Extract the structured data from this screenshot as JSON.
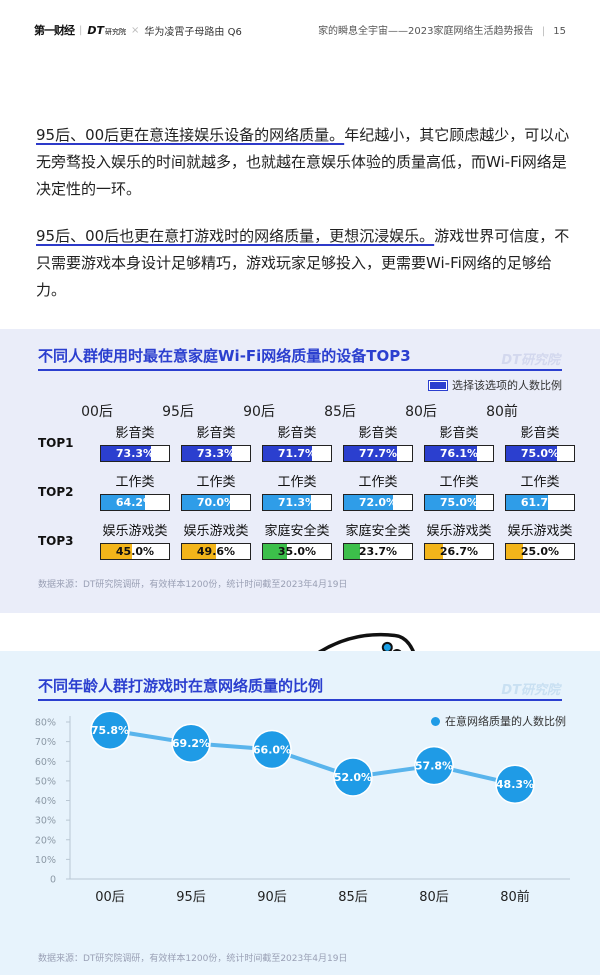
{
  "header": {
    "brand": "第一财经",
    "brand2": "DT",
    "brand2_sub": "研究院",
    "partner": "华为凌霄子母路由 Q6",
    "report_title": "家的瞬息全宇宙——2023家庭网络生活趋势报告",
    "page_number": "15"
  },
  "paragraphs": [
    {
      "lead": "95后、00后更在意连接娱乐设备的网络质量。",
      "body": "年纪越小，其它顾虑越少，可以心无旁骛投入娱乐的时间就越多，也就越在意娱乐体验的质量高低，而Wi-Fi网络是决定性的一环。"
    },
    {
      "lead": "95后、00后也更在意打游戏时的网络质量，更想沉浸娱乐。",
      "body": "游戏世界可信度，不只需要游戏本身设计足够精巧，游戏玩家足够投入，更需要Wi-Fi网络的足够给力。"
    }
  ],
  "chart_data": [
    {
      "type": "table",
      "title": "不同人群使用时最在意家庭Wi-Fi网络质量的设备TOP3",
      "watermark": "DT研究院",
      "legend": "选择该选项的人数比例",
      "categories": [
        "00后",
        "95后",
        "90后",
        "85后",
        "80后",
        "80前"
      ],
      "rows": [
        {
          "label": "TOP1",
          "color": "#2b3fcf",
          "items": [
            {
              "name": "影音类",
              "value": 73.3,
              "text": "73.3%"
            },
            {
              "name": "影音类",
              "value": 73.3,
              "text": "73.3%"
            },
            {
              "name": "影音类",
              "value": 71.7,
              "text": "71.7%"
            },
            {
              "name": "影音类",
              "value": 77.7,
              "text": "77.7%"
            },
            {
              "name": "影音类",
              "value": 76.1,
              "text": "76.1%"
            },
            {
              "name": "影音类",
              "value": 75.0,
              "text": "75.0%"
            }
          ]
        },
        {
          "label": "TOP2",
          "color": "#2f9de8",
          "items": [
            {
              "name": "工作类",
              "value": 64.2,
              "text": "64.2%"
            },
            {
              "name": "工作类",
              "value": 70.0,
              "text": "70.0%"
            },
            {
              "name": "工作类",
              "value": 71.3,
              "text": "71.3%"
            },
            {
              "name": "工作类",
              "value": 72.0,
              "text": "72.0%"
            },
            {
              "name": "工作类",
              "value": 75.0,
              "text": "75.0%"
            },
            {
              "name": "工作类",
              "value": 61.7,
              "text": "61.7%"
            }
          ]
        },
        {
          "label": "TOP3",
          "items": [
            {
              "name": "娱乐游戏类",
              "value": 45.0,
              "text": "45.0%",
              "color": "#f3b51a"
            },
            {
              "name": "娱乐游戏类",
              "value": 49.6,
              "text": "49.6%",
              "color": "#f3b51a"
            },
            {
              "name": "家庭安全类",
              "value": 35.0,
              "text": "35.0%",
              "color": "#3cbf4a"
            },
            {
              "name": "家庭安全类",
              "value": 23.7,
              "text": "23.7%",
              "color": "#3cbf4a"
            },
            {
              "name": "娱乐游戏类",
              "value": 26.7,
              "text": "26.7%",
              "color": "#f3b51a"
            },
            {
              "name": "娱乐游戏类",
              "value": 25.0,
              "text": "25.0%",
              "color": "#f3b51a"
            }
          ]
        }
      ],
      "source": "数据来源：DT研究院调研，有效样本1200份，统计时间截至2023年4月19日"
    },
    {
      "type": "line",
      "title": "不同年龄人群打游戏时在意网络质量的比例",
      "watermark": "DT研究院",
      "categories": [
        "00后",
        "95后",
        "90后",
        "85后",
        "80后",
        "80前"
      ],
      "series": [
        {
          "name": "在意网络质量的人数比例",
          "values": [
            75.8,
            69.2,
            66.0,
            52.0,
            57.8,
            48.3
          ],
          "labels": [
            "75.8%",
            "69.2%",
            "66.0%",
            "52.0%",
            "57.8%",
            "48.3%"
          ]
        }
      ],
      "yticks": [
        "0",
        "10%",
        "20%",
        "30%",
        "40%",
        "50%",
        "60%",
        "70%",
        "80%"
      ],
      "ylim": [
        0,
        80
      ],
      "grid": false,
      "legend_position": "top-right",
      "colors": {
        "line": "#59b4ec",
        "marker": "#1f9be6"
      },
      "source": "数据来源：DT研究院调研，有效样本1200份，统计时间截至2023年4月19日"
    }
  ]
}
